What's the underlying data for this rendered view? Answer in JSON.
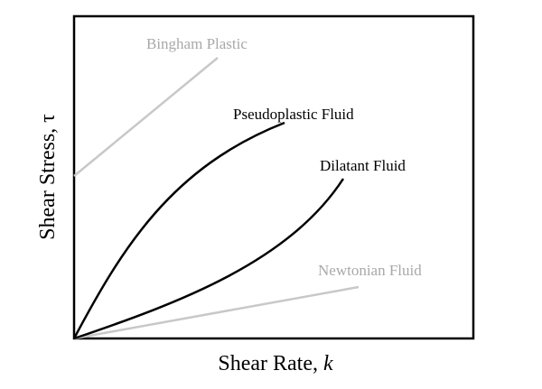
{
  "curves": [
    {
      "label": "Bingham Plastic"
    },
    {
      "label": "Pseudoplastic Fluid"
    },
    {
      "label": "Dilatant Fluid"
    },
    {
      "label": "Newtonian Fluid"
    }
  ],
  "x_label": {
    "text": "Shear Rate, ",
    "symbol": "k"
  },
  "y_label": {
    "text": "Shear Stress, ",
    "symbol": "τ"
  }
}
